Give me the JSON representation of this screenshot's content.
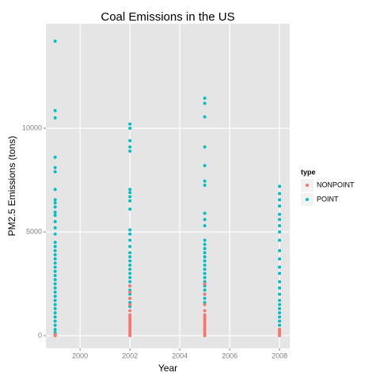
{
  "chart_data": {
    "type": "scatter",
    "title": "Coal Emissions in the US",
    "xlabel": "Year",
    "ylabel": "PM2.5 Emissions (tons)",
    "legend_title": "type",
    "legend": "right",
    "xlim": [
      1998.63,
      2008.41
    ],
    "xticks": [
      2000,
      2002,
      2004,
      2006,
      2008
    ],
    "ylim": [
      -611,
      15038
    ],
    "yticks": [
      0,
      5000,
      10000
    ],
    "grid": true,
    "series": [
      {
        "name": "NONPOINT",
        "color": "#f8766d",
        "x": [
          1999,
          1999,
          1999,
          2002,
          2002,
          2002,
          2002,
          2002,
          2002,
          2002,
          2002,
          2002,
          2002,
          2002,
          2002,
          2002,
          2002,
          2002,
          2002,
          2005,
          2005,
          2005,
          2005,
          2005,
          2005,
          2005,
          2005,
          2005,
          2005,
          2005,
          2005,
          2005,
          2005,
          2005,
          2008,
          2008,
          2008,
          2008
        ],
        "values": [
          0,
          20,
          50,
          2400,
          2100,
          1800,
          1500,
          1200,
          1000,
          900,
          800,
          700,
          600,
          500,
          400,
          300,
          200,
          100,
          0,
          2500,
          2000,
          1500,
          1200,
          1000,
          900,
          800,
          700,
          600,
          500,
          400,
          300,
          200,
          100,
          0,
          300,
          200,
          100,
          0
        ]
      },
      {
        "name": "POINT",
        "color": "#00bfc4",
        "x": [
          1999,
          1999,
          1999,
          1999,
          1999,
          1999,
          1999,
          1999,
          1999,
          1999,
          1999,
          1999,
          1999,
          1999,
          1999,
          1999,
          1999,
          1999,
          1999,
          1999,
          1999,
          1999,
          1999,
          1999,
          1999,
          1999,
          1999,
          1999,
          1999,
          1999,
          1999,
          1999,
          1999,
          1999,
          1999,
          1999,
          1999,
          1999,
          1999,
          2002,
          2002,
          2002,
          2002,
          2002,
          2002,
          2002,
          2002,
          2002,
          2002,
          2002,
          2002,
          2002,
          2002,
          2002,
          2002,
          2002,
          2002,
          2002,
          2002,
          2002,
          2002,
          2002,
          2002,
          2002,
          2002,
          2002,
          2002,
          2005,
          2005,
          2005,
          2005,
          2005,
          2005,
          2005,
          2005,
          2005,
          2005,
          2005,
          2005,
          2005,
          2005,
          2005,
          2005,
          2005,
          2005,
          2005,
          2005,
          2005,
          2005,
          2005,
          2005,
          2005,
          2005,
          2008,
          2008,
          2008,
          2008,
          2008,
          2008,
          2008,
          2008,
          2008,
          2008,
          2008,
          2008,
          2008,
          2008,
          2008,
          2008,
          2008,
          2008,
          2008,
          2008,
          2008,
          2008,
          2008,
          2008
        ],
        "values": [
          14200,
          10850,
          10500,
          8600,
          8100,
          7900,
          7050,
          6550,
          6400,
          6200,
          5950,
          5800,
          5500,
          5200,
          4900,
          4500,
          4300,
          4100,
          3900,
          3700,
          3500,
          3300,
          3100,
          2900,
          2700,
          2500,
          2300,
          2100,
          1900,
          1700,
          1500,
          1300,
          1100,
          900,
          700,
          500,
          300,
          150,
          50,
          10200,
          10000,
          9400,
          9100,
          8900,
          7050,
          6900,
          6700,
          6500,
          6100,
          5100,
          4900,
          4600,
          4300,
          4000,
          3800,
          3600,
          3400,
          3200,
          3000,
          2800,
          2600,
          2400,
          2200,
          2000,
          1800,
          1600,
          1400,
          11450,
          11200,
          10550,
          9100,
          8200,
          7450,
          7250,
          5900,
          5600,
          5300,
          4600,
          4400,
          4200,
          4000,
          3800,
          3600,
          3400,
          3200,
          3000,
          2800,
          2600,
          2400,
          2200,
          2000,
          1800,
          1600,
          7200,
          6850,
          6550,
          6250,
          5850,
          5600,
          5300,
          5000,
          4600,
          4100,
          3700,
          3300,
          3000,
          2600,
          2300,
          2000,
          1700,
          1500,
          1300,
          1100,
          900,
          700,
          500,
          300
        ]
      }
    ]
  }
}
